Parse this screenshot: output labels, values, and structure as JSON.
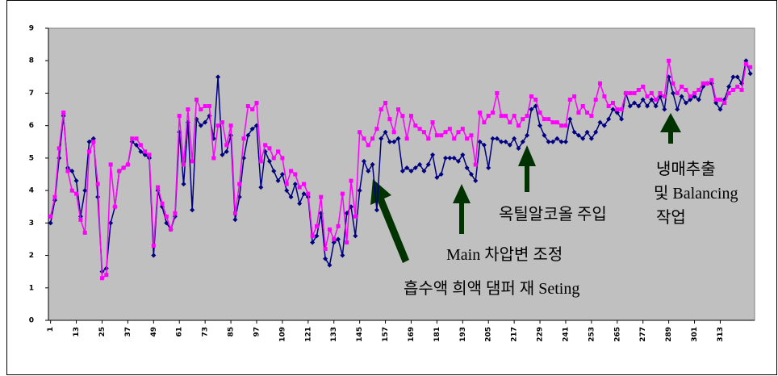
{
  "chart_data": {
    "type": "line",
    "x": [
      1,
      3,
      5,
      7,
      9,
      11,
      13,
      15,
      17,
      19,
      21,
      23,
      25,
      27,
      29,
      31,
      33,
      35,
      37,
      39,
      41,
      43,
      45,
      47,
      49,
      51,
      53,
      55,
      57,
      59,
      61,
      63,
      65,
      67,
      69,
      71,
      73,
      75,
      77,
      79,
      81,
      83,
      85,
      87,
      89,
      91,
      93,
      95,
      97,
      99,
      101,
      103,
      105,
      107,
      109,
      111,
      113,
      115,
      117,
      119,
      121,
      123,
      125,
      127,
      129,
      131,
      133,
      135,
      137,
      139,
      141,
      143,
      145,
      147,
      149,
      151,
      153,
      155,
      157,
      159,
      161,
      163,
      165,
      167,
      169,
      171,
      173,
      175,
      177,
      179,
      181,
      183,
      185,
      187,
      189,
      191,
      193,
      195,
      197,
      199,
      201,
      203,
      205,
      207,
      209,
      211,
      213,
      215,
      217,
      219,
      221,
      223,
      225,
      227,
      229,
      231,
      233,
      235,
      237,
      239,
      241,
      243,
      245,
      247,
      249,
      251,
      253,
      255,
      257,
      259,
      261,
      263,
      265,
      267,
      269,
      271,
      273,
      275,
      277,
      279,
      281,
      283,
      285,
      287,
      289,
      291,
      293,
      295,
      297,
      299,
      301,
      303,
      305,
      307,
      309,
      311,
      313,
      315,
      317,
      319,
      321,
      323,
      325,
      327
    ],
    "series": [
      {
        "color": "#000080",
        "marker": "diamond",
        "values": [
          3.0,
          3.7,
          5.0,
          6.3,
          4.7,
          4.6,
          4.3,
          3.2,
          4.0,
          5.5,
          5.6,
          3.8,
          1.5,
          1.6,
          3.0,
          3.5,
          4.6,
          4.7,
          4.8,
          5.5,
          5.4,
          5.2,
          5.1,
          5.0,
          2.0,
          4.0,
          3.5,
          3.0,
          2.8,
          3.2,
          5.8,
          4.2,
          6.1,
          3.4,
          6.2,
          6.0,
          6.1,
          6.3,
          5.6,
          7.5,
          5.1,
          5.2,
          5.7,
          3.1,
          3.8,
          5.0,
          5.7,
          5.9,
          6.0,
          4.1,
          5.2,
          4.9,
          4.6,
          4.3,
          4.5,
          4.0,
          3.8,
          4.2,
          3.6,
          3.9,
          3.8,
          2.4,
          2.6,
          3.3,
          1.9,
          1.7,
          2.4,
          2.5,
          2.0,
          3.3,
          3.5,
          2.6,
          4.0,
          4.9,
          4.6,
          4.8,
          3.4,
          5.6,
          5.8,
          5.5,
          5.5,
          5.6,
          4.6,
          4.7,
          4.6,
          4.7,
          4.8,
          4.6,
          4.8,
          5.1,
          4.4,
          4.5,
          5.0,
          5.0,
          5.0,
          4.9,
          5.1,
          4.7,
          4.5,
          4.3,
          5.5,
          5.4,
          4.7,
          5.6,
          5.6,
          5.5,
          5.5,
          5.4,
          5.6,
          5.3,
          5.5,
          5.7,
          6.5,
          6.6,
          6.0,
          5.7,
          5.5,
          5.5,
          5.6,
          5.5,
          5.5,
          6.2,
          5.8,
          5.7,
          5.6,
          5.8,
          5.6,
          5.8,
          6.1,
          6.0,
          6.2,
          6.5,
          6.4,
          6.2,
          7.0,
          6.6,
          6.7,
          6.6,
          6.8,
          6.6,
          6.8,
          6.6,
          6.9,
          6.5,
          7.5,
          7.0,
          6.5,
          6.9,
          6.7,
          6.8,
          6.9,
          6.8,
          7.2,
          7.3,
          7.3,
          6.7,
          6.5,
          6.8,
          7.2,
          7.5,
          7.5,
          7.3,
          8.0,
          7.6
        ]
      },
      {
        "color": "#ff00ff",
        "marker": "square",
        "values": [
          3.2,
          3.8,
          5.3,
          6.4,
          4.6,
          4.0,
          3.9,
          3.1,
          2.7,
          5.2,
          5.5,
          4.2,
          1.3,
          1.4,
          4.8,
          3.5,
          4.6,
          4.7,
          4.8,
          5.6,
          5.6,
          5.4,
          5.2,
          5.1,
          2.3,
          4.1,
          3.6,
          3.2,
          2.8,
          3.3,
          6.3,
          4.8,
          6.5,
          4.9,
          6.8,
          6.5,
          6.6,
          6.6,
          5.0,
          6.0,
          6.1,
          5.4,
          6.0,
          3.3,
          4.2,
          5.6,
          6.6,
          6.5,
          6.7,
          4.9,
          5.4,
          5.3,
          5.0,
          5.2,
          5.0,
          4.2,
          4.6,
          4.5,
          4.1,
          4.2,
          3.9,
          2.6,
          2.9,
          3.8,
          2.2,
          2.8,
          2.5,
          2.9,
          3.9,
          2.4,
          4.3,
          3.2,
          5.8,
          5.6,
          5.4,
          5.6,
          5.9,
          6.5,
          6.7,
          6.2,
          5.8,
          6.5,
          6.3,
          5.6,
          6.3,
          6.0,
          5.9,
          5.8,
          5.6,
          6.1,
          5.7,
          5.7,
          5.8,
          5.9,
          5.6,
          5.8,
          5.9,
          5.6,
          5.7,
          4.8,
          6.4,
          6.1,
          6.3,
          6.4,
          7.0,
          6.3,
          6.3,
          6.1,
          6.3,
          6.0,
          6.2,
          6.3,
          6.9,
          6.8,
          6.4,
          6.2,
          6.2,
          6.1,
          6.1,
          6.0,
          6.0,
          6.8,
          6.9,
          6.4,
          6.6,
          6.4,
          6.3,
          6.8,
          7.3,
          6.9,
          6.6,
          6.7,
          6.5,
          6.5,
          7.0,
          7.0,
          7.0,
          7.1,
          7.2,
          6.9,
          7.0,
          6.8,
          7.0,
          6.9,
          8.0,
          7.3,
          7.0,
          7.2,
          7.1,
          6.9,
          7.0,
          7.1,
          7.3,
          7.3,
          7.4,
          6.8,
          6.8,
          6.7,
          7.0,
          7.1,
          7.2,
          7.1,
          7.9,
          7.8
        ]
      }
    ],
    "xlim": [
      0,
      329
    ],
    "xticks": [
      1,
      13,
      25,
      37,
      49,
      61,
      73,
      85,
      97,
      109,
      121,
      133,
      145,
      157,
      169,
      181,
      193,
      205,
      217,
      229,
      241,
      253,
      265,
      277,
      289,
      301,
      313
    ],
    "ylim": [
      0,
      9
    ],
    "yticks": [
      0,
      1,
      2,
      3,
      4,
      5,
      6,
      7,
      8,
      9
    ],
    "annotations": [
      "냉매추출",
      "및 Balancing",
      "작업",
      "옥틸알코올 주입",
      "Main 차압변 조정",
      "흡수액 희액 댐퍼 재 Seting"
    ]
  }
}
